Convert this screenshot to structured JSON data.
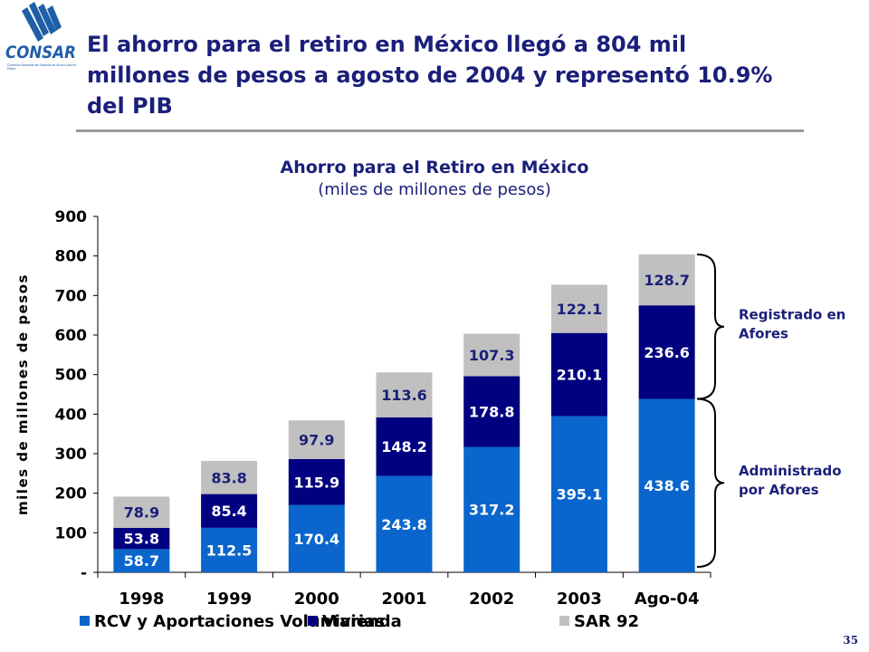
{
  "header": {
    "title": "El ahorro para el retiro en México llegó a 804 mil millones de pesos a agosto de 2004 y representó 10.9% del PIB",
    "logo_text": "CONSAR",
    "logo_subtext": "Comisión Nacional del Sistema de Ahorro para el Retiro"
  },
  "page_number": "35",
  "colors": {
    "title": "#1a1f7a",
    "rcv": "#0a66cc",
    "vivienda": "#000080",
    "sar92": "#c0c0c0",
    "rule": "#9a9a9a"
  },
  "chart_data": {
    "type": "bar",
    "stacked": true,
    "title": "Ahorro para el Retiro en México",
    "subtitle": "(miles de millones de pesos)",
    "ylabel": "miles de millones de pesos",
    "ylim": [
      0,
      900
    ],
    "yticks": [
      0,
      100,
      200,
      300,
      400,
      500,
      600,
      700,
      800,
      900
    ],
    "ytick_labels": [
      "-",
      "100",
      "200",
      "300",
      "400",
      "500",
      "600",
      "700",
      "800",
      "900"
    ],
    "categories": [
      "1998",
      "1999",
      "2000",
      "2001",
      "2002",
      "2003",
      "Ago-04"
    ],
    "series": [
      {
        "name": "RCV y Aportaciones Voluntarias",
        "color": "#0a66cc",
        "label_color": "#ffffff",
        "values": [
          58.7,
          112.5,
          170.4,
          243.8,
          317.2,
          395.1,
          438.6
        ]
      },
      {
        "name": "Vivienda",
        "color": "#000080",
        "label_color": "#ffffff",
        "values": [
          53.8,
          85.4,
          115.9,
          148.2,
          178.8,
          210.1,
          236.6
        ]
      },
      {
        "name": "SAR 92",
        "color": "#c0c0c0",
        "label_color": "#1a1f7a",
        "values": [
          78.9,
          83.8,
          97.9,
          113.6,
          107.3,
          122.1,
          128.7
        ]
      }
    ],
    "legend_position": "bottom",
    "grid": false,
    "annotations": [
      {
        "text": "Registrado en Afores",
        "lines": [
          "Registrado en",
          "Afores"
        ]
      },
      {
        "text": "Administrado por Afores",
        "lines": [
          "Administrado",
          "por Afores"
        ]
      }
    ]
  }
}
